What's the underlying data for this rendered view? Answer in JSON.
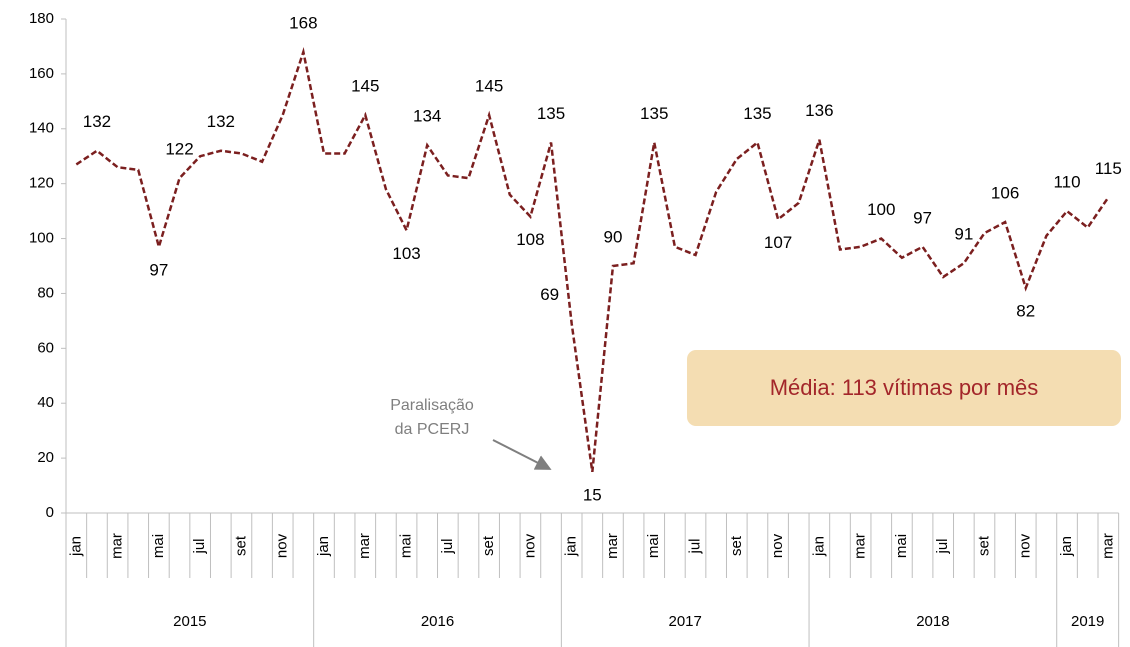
{
  "chart_data": {
    "type": "line",
    "categories": [
      "jan",
      null,
      "mar",
      null,
      "mai",
      null,
      "jul",
      null,
      "set",
      null,
      "nov",
      null,
      "jan",
      null,
      "mar",
      null,
      "mai",
      null,
      "jul",
      null,
      "set",
      null,
      "nov",
      null,
      "jan",
      null,
      "mar",
      null,
      "mai",
      null,
      "jul",
      null,
      "set",
      null,
      "nov",
      null,
      "jan",
      null,
      "mar",
      null,
      "mai",
      null,
      "jul",
      null,
      "set",
      null,
      "nov",
      null,
      "jan",
      null,
      "mar"
    ],
    "years": [
      "2015",
      "2015",
      "2015",
      "2015",
      "2015",
      "2015",
      "2015",
      "2015",
      "2015",
      "2015",
      "2015",
      "2015",
      "2016",
      "2016",
      "2016",
      "2016",
      "2016",
      "2016",
      "2016",
      "2016",
      "2016",
      "2016",
      "2016",
      "2016",
      "2017",
      "2017",
      "2017",
      "2017",
      "2017",
      "2017",
      "2017",
      "2017",
      "2017",
      "2017",
      "2017",
      "2017",
      "2018",
      "2018",
      "2018",
      "2018",
      "2018",
      "2018",
      "2018",
      "2018",
      "2018",
      "2018",
      "2018",
      "2018",
      "2019",
      "2019",
      "2019"
    ],
    "series": [
      {
        "name": "Vítimas",
        "color": "#7b1f1f",
        "values": [
          127,
          132,
          126,
          125,
          97,
          122,
          130,
          132,
          131,
          128,
          145,
          168,
          131,
          131,
          145,
          118,
          103,
          134,
          123,
          122,
          145,
          116,
          108,
          135,
          69,
          15,
          90,
          91,
          135,
          97,
          94,
          117,
          129,
          135,
          107,
          113,
          136,
          96,
          97,
          100,
          93,
          97,
          86,
          91,
          102,
          106,
          82,
          101,
          110,
          104,
          115
        ],
        "value_labels": [
          null,
          "132",
          null,
          null,
          "97",
          "122",
          null,
          "132",
          null,
          null,
          null,
          "168",
          null,
          null,
          "145",
          null,
          "103",
          "134",
          null,
          null,
          "145",
          null,
          "108",
          "135",
          "69",
          "15",
          "90",
          null,
          "135",
          null,
          null,
          null,
          null,
          "135",
          "107",
          null,
          "136",
          null,
          null,
          "100",
          null,
          "97",
          null,
          "91",
          null,
          "106",
          "82",
          null,
          "110",
          null,
          "115"
        ]
      }
    ],
    "ylim": [
      0,
      180
    ],
    "yticks": [
      0,
      20,
      40,
      60,
      80,
      100,
      120,
      140,
      160,
      180
    ],
    "annotations": [
      {
        "text": [
          "Paralisação",
          "da PCERJ"
        ],
        "index": 25
      },
      {
        "text": "Média: 113 vítimas por mês"
      }
    ]
  }
}
